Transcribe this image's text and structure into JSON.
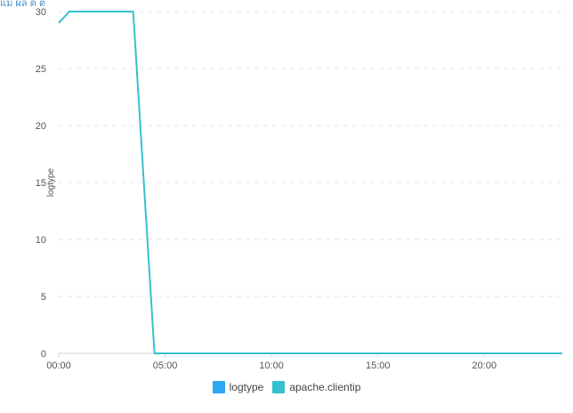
{
  "header_fragment": "แม่ ผล ต ต",
  "chart_data": {
    "type": "line",
    "ylabel": "logtype",
    "xlabel": "",
    "ylim": [
      0,
      30
    ],
    "y_ticks": [
      "0",
      "5",
      "10",
      "15",
      "20",
      "25",
      "30"
    ],
    "y_tick_values": [
      0,
      5,
      10,
      15,
      20,
      25,
      30
    ],
    "x_range_minutes": [
      0,
      1420
    ],
    "x_ticks": [
      "00:00",
      "05:00",
      "10:00",
      "15:00",
      "20:00"
    ],
    "x_tick_minutes": [
      0,
      300,
      600,
      900,
      1200
    ],
    "grid": true,
    "legend_position": "bottom",
    "series": [
      {
        "name": "logtype",
        "color": "#2fa6f2",
        "points": []
      },
      {
        "name": "apache.clientip",
        "color": "#36c0cf",
        "points": [
          {
            "x": 0,
            "y": 29
          },
          {
            "x": 30,
            "y": 30
          },
          {
            "x": 210,
            "y": 30
          },
          {
            "x": 270,
            "y": 0
          },
          {
            "x": 1420,
            "y": 0
          }
        ]
      }
    ]
  }
}
